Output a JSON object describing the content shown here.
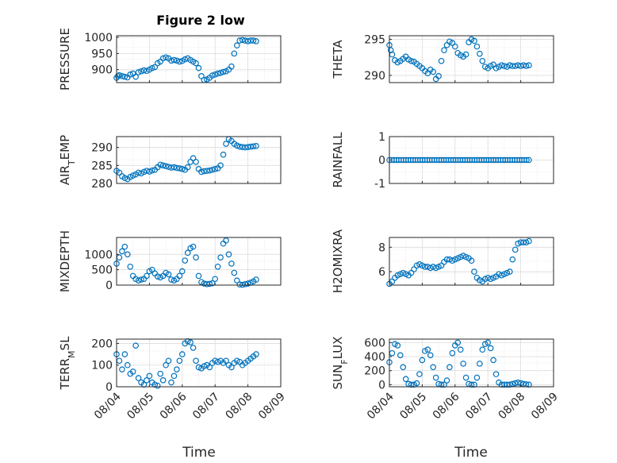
{
  "figure": {
    "title": "Figure 2 low",
    "marker_color": "#0072BD",
    "x_ticks": [
      "08/04",
      "08/05",
      "08/06",
      "08/07",
      "08/08",
      "08/09"
    ],
    "x_label": "Time"
  },
  "chart_data": [
    {
      "type": "scatter",
      "ylabel": "PRESSURE",
      "ylim": [
        860,
        1005
      ],
      "yticks": [
        "900",
        "950",
        "1000"
      ],
      "grid": true,
      "x": [
        "08/04 00:00",
        "08/04 01:00",
        "08/04 02:00",
        "08/04 04:00",
        "08/04 06:00",
        "08/04 08:00",
        "08/04 10:00",
        "08/04 12:00",
        "08/04 14:00",
        "08/04 16:00",
        "08/04 18:00",
        "08/04 20:00",
        "08/04 22:00",
        "08/05 00:00",
        "08/05 02:00",
        "08/05 04:00",
        "08/05 06:00",
        "08/05 08:00",
        "08/05 10:00",
        "08/05 12:00",
        "08/05 14:00",
        "08/05 16:00",
        "08/05 18:00",
        "08/05 20:00",
        "08/05 22:00",
        "08/06 00:00",
        "08/06 02:00",
        "08/06 04:00",
        "08/06 06:00",
        "08/06 08:00",
        "08/06 10:00",
        "08/06 12:00",
        "08/06 14:00",
        "08/06 16:00",
        "08/06 18:00",
        "08/06 20:00",
        "08/06 22:00",
        "08/07 00:00",
        "08/07 02:00",
        "08/07 04:00",
        "08/07 06:00",
        "08/07 08:00",
        "08/07 10:00",
        "08/07 12:00",
        "08/07 14:00",
        "08/07 16:00",
        "08/07 18:00",
        "08/07 20:00",
        "08/07 22:00",
        "08/08 00:00",
        "08/08 02:00",
        "08/08 04:00",
        "08/08 06:00"
      ],
      "y": [
        875,
        880,
        883,
        880,
        878,
        876,
        885,
        888,
        878,
        892,
        895,
        898,
        896,
        900,
        905,
        908,
        920,
        925,
        935,
        938,
        935,
        928,
        930,
        928,
        925,
        927,
        932,
        935,
        930,
        925,
        920,
        905,
        880,
        868,
        870,
        875,
        882,
        885,
        888,
        890,
        893,
        895,
        900,
        910,
        950,
        975,
        990,
        992,
        990,
        988,
        990,
        990,
        988
      ]
    },
    {
      "type": "scatter",
      "ylabel": "THETA",
      "ylim": [
        289,
        295.5
      ],
      "yticks": [
        "290",
        "295"
      ],
      "grid": true,
      "x": [
        "08/04 00:00",
        "08/04 01:00",
        "08/04 02:00",
        "08/04 04:00",
        "08/04 06:00",
        "08/04 08:00",
        "08/04 10:00",
        "08/04 12:00",
        "08/04 14:00",
        "08/04 16:00",
        "08/04 18:00",
        "08/04 20:00",
        "08/04 22:00",
        "08/05 00:00",
        "08/05 02:00",
        "08/05 04:00",
        "08/05 06:00",
        "08/05 08:00",
        "08/05 10:00",
        "08/05 12:00",
        "08/05 14:00",
        "08/05 16:00",
        "08/05 18:00",
        "08/05 20:00",
        "08/05 22:00",
        "08/06 00:00",
        "08/06 02:00",
        "08/06 04:00",
        "08/06 06:00",
        "08/06 08:00",
        "08/06 10:00",
        "08/06 12:00",
        "08/06 14:00",
        "08/06 16:00",
        "08/06 18:00",
        "08/06 20:00",
        "08/06 22:00",
        "08/07 00:00",
        "08/07 02:00",
        "08/07 04:00",
        "08/07 06:00",
        "08/07 08:00",
        "08/07 10:00",
        "08/07 12:00",
        "08/07 14:00",
        "08/07 16:00",
        "08/07 18:00",
        "08/07 20:00",
        "08/07 22:00",
        "08/08 00:00",
        "08/08 02:00",
        "08/08 04:00",
        "08/08 06:00"
      ],
      "y": [
        294.2,
        293.5,
        292.9,
        292.1,
        291.8,
        292.0,
        292.3,
        292.6,
        292.2,
        292.0,
        291.9,
        291.6,
        291.3,
        291.0,
        290.6,
        290.3,
        290.8,
        290.5,
        289.5,
        289.9,
        292.0,
        293.5,
        294.2,
        294.7,
        294.5,
        294.0,
        293.1,
        292.8,
        292.6,
        292.9,
        294.6,
        295.0,
        294.8,
        294.0,
        293.0,
        292.0,
        291.2,
        291.0,
        291.3,
        291.5,
        291.0,
        291.2,
        291.4,
        291.3,
        291.2,
        291.4,
        291.3,
        291.3,
        291.4,
        291.3,
        291.4,
        291.3,
        291.4
      ]
    },
    {
      "type": "scatter",
      "ylabel": "AIR_TEMP",
      "ylim": [
        280,
        293
      ],
      "yticks": [
        "280",
        "285",
        "290"
      ],
      "grid": true,
      "x": [
        "08/04 00:00",
        "08/04 02:00",
        "08/04 04:00",
        "08/04 06:00",
        "08/04 08:00",
        "08/04 10:00",
        "08/04 12:00",
        "08/04 14:00",
        "08/04 16:00",
        "08/04 18:00",
        "08/04 20:00",
        "08/04 22:00",
        "08/05 00:00",
        "08/05 02:00",
        "08/05 04:00",
        "08/05 06:00",
        "08/05 08:00",
        "08/05 10:00",
        "08/05 12:00",
        "08/05 14:00",
        "08/05 16:00",
        "08/05 18:00",
        "08/05 20:00",
        "08/05 22:00",
        "08/06 00:00",
        "08/06 02:00",
        "08/06 04:00",
        "08/06 06:00",
        "08/06 08:00",
        "08/06 10:00",
        "08/06 12:00",
        "08/06 14:00",
        "08/06 16:00",
        "08/06 18:00",
        "08/06 20:00",
        "08/06 22:00",
        "08/07 00:00",
        "08/07 02:00",
        "08/07 04:00",
        "08/07 06:00",
        "08/07 08:00",
        "08/07 10:00",
        "08/07 12:00",
        "08/07 14:00",
        "08/07 16:00",
        "08/07 18:00",
        "08/07 20:00",
        "08/07 22:00",
        "08/08 00:00",
        "08/08 02:00",
        "08/08 04:00",
        "08/08 06:00"
      ],
      "y": [
        283.5,
        283,
        282,
        281.5,
        281.2,
        281.8,
        282.2,
        282.5,
        283,
        282.8,
        283.2,
        283.5,
        283.3,
        283.6,
        283.8,
        284.5,
        285.2,
        285,
        284.8,
        284.6,
        284.4,
        284.5,
        284.3,
        284.2,
        284.0,
        283.8,
        284.5,
        286,
        287,
        286,
        284,
        283.2,
        283.4,
        283.5,
        283.6,
        283.8,
        284.0,
        284.2,
        285,
        288,
        291,
        292.3,
        291.8,
        291,
        290.5,
        290.2,
        290.1,
        290.0,
        290.1,
        290.2,
        290.3,
        290.4
      ]
    },
    {
      "type": "scatter",
      "ylabel": "RAINFALL",
      "ylim": [
        -1,
        1
      ],
      "yticks": [
        "-1",
        "0",
        "1"
      ],
      "grid": true,
      "x_range": [
        "08/04 00:00",
        "08/08 06:00"
      ],
      "y_constant": 0,
      "n_points": 60
    },
    {
      "type": "scatter",
      "ylabel": "MIXDEPTH",
      "ylim": [
        0,
        1550
      ],
      "yticks": [
        "0",
        "500",
        "1000"
      ],
      "grid": true,
      "x": [
        "08/04 00:00",
        "08/04 02:00",
        "08/04 04:00",
        "08/04 06:00",
        "08/04 08:00",
        "08/04 10:00",
        "08/04 12:00",
        "08/04 14:00",
        "08/04 16:00",
        "08/04 18:00",
        "08/04 20:00",
        "08/04 22:00",
        "08/05 00:00",
        "08/05 02:00",
        "08/05 04:00",
        "08/05 06:00",
        "08/05 08:00",
        "08/05 10:00",
        "08/05 12:00",
        "08/05 14:00",
        "08/05 16:00",
        "08/05 18:00",
        "08/05 20:00",
        "08/05 22:00",
        "08/06 00:00",
        "08/06 02:00",
        "08/06 04:00",
        "08/06 06:00",
        "08/06 08:00",
        "08/06 10:00",
        "08/06 12:00",
        "08/06 14:00",
        "08/06 16:00",
        "08/06 18:00",
        "08/06 20:00",
        "08/06 22:00",
        "08/07 00:00",
        "08/07 02:00",
        "08/07 04:00",
        "08/07 06:00",
        "08/07 08:00",
        "08/07 10:00",
        "08/07 12:00",
        "08/07 14:00",
        "08/07 16:00",
        "08/07 18:00",
        "08/07 20:00",
        "08/07 22:00",
        "08/08 00:00",
        "08/08 02:00",
        "08/08 04:00",
        "08/08 06:00"
      ],
      "y": [
        700,
        900,
        1100,
        1250,
        1000,
        600,
        300,
        200,
        150,
        180,
        200,
        300,
        450,
        500,
        380,
        280,
        250,
        300,
        400,
        350,
        180,
        150,
        200,
        300,
        450,
        800,
        1050,
        1200,
        1250,
        900,
        300,
        100,
        50,
        30,
        40,
        60,
        200,
        600,
        900,
        1350,
        1450,
        1000,
        700,
        400,
        150,
        20,
        10,
        30,
        50,
        80,
        120,
        180
      ]
    },
    {
      "type": "scatter",
      "ylabel": "H2OMIXRA",
      "ylim": [
        4.9,
        8.8
      ],
      "yticks": [
        "6",
        "8"
      ],
      "grid": true,
      "x": [
        "08/04 00:00",
        "08/04 02:00",
        "08/04 04:00",
        "08/04 06:00",
        "08/04 08:00",
        "08/04 10:00",
        "08/04 12:00",
        "08/04 14:00",
        "08/04 16:00",
        "08/04 18:00",
        "08/04 20:00",
        "08/04 22:00",
        "08/05 00:00",
        "08/05 02:00",
        "08/05 04:00",
        "08/05 06:00",
        "08/05 08:00",
        "08/05 10:00",
        "08/05 12:00",
        "08/05 14:00",
        "08/05 16:00",
        "08/05 18:00",
        "08/05 20:00",
        "08/05 22:00",
        "08/06 00:00",
        "08/06 02:00",
        "08/06 04:00",
        "08/06 06:00",
        "08/06 08:00",
        "08/06 10:00",
        "08/06 12:00",
        "08/06 14:00",
        "08/06 16:00",
        "08/06 18:00",
        "08/06 20:00",
        "08/06 22:00",
        "08/07 00:00",
        "08/07 02:00",
        "08/07 04:00",
        "08/07 06:00",
        "08/07 08:00",
        "08/07 10:00",
        "08/07 12:00",
        "08/07 14:00",
        "08/07 16:00",
        "08/07 18:00",
        "08/07 20:00",
        "08/07 22:00",
        "08/08 00:00",
        "08/08 02:00",
        "08/08 04:00",
        "08/08 06:00"
      ],
      "y": [
        5.0,
        5.2,
        5.5,
        5.7,
        5.8,
        5.9,
        5.8,
        5.7,
        5.9,
        6.2,
        6.5,
        6.6,
        6.5,
        6.4,
        6.4,
        6.3,
        6.4,
        6.3,
        6.4,
        6.5,
        6.8,
        7.0,
        7.0,
        6.9,
        7.0,
        7.1,
        7.2,
        7.3,
        7.2,
        7.1,
        6.9,
        6.0,
        5.5,
        5.3,
        5.2,
        5.4,
        5.5,
        5.4,
        5.5,
        5.6,
        5.8,
        5.7,
        5.8,
        5.9,
        6.0,
        7.0,
        7.8,
        8.3,
        8.4,
        8.4,
        8.4,
        8.5
      ]
    },
    {
      "type": "scatter",
      "ylabel": "TERR_MSL",
      "ylim": [
        0,
        220
      ],
      "yticks": [
        "0",
        "100",
        "200"
      ],
      "grid": true,
      "x": [
        "08/04 00:00",
        "08/04 02:00",
        "08/04 04:00",
        "08/04 06:00",
        "08/04 08:00",
        "08/04 10:00",
        "08/04 12:00",
        "08/04 14:00",
        "08/04 16:00",
        "08/04 18:00",
        "08/04 20:00",
        "08/04 22:00",
        "08/05 00:00",
        "08/05 02:00",
        "08/05 04:00",
        "08/05 06:00",
        "08/05 08:00",
        "08/05 10:00",
        "08/05 12:00",
        "08/05 14:00",
        "08/05 16:00",
        "08/05 18:00",
        "08/05 20:00",
        "08/05 22:00",
        "08/06 00:00",
        "08/06 02:00",
        "08/06 04:00",
        "08/06 06:00",
        "08/06 08:00",
        "08/06 10:00",
        "08/06 12:00",
        "08/06 14:00",
        "08/06 16:00",
        "08/06 18:00",
        "08/06 20:00",
        "08/06 22:00",
        "08/07 00:00",
        "08/07 02:00",
        "08/07 04:00",
        "08/07 06:00",
        "08/07 08:00",
        "08/07 10:00",
        "08/07 12:00",
        "08/07 14:00",
        "08/07 16:00",
        "08/07 18:00",
        "08/07 20:00",
        "08/07 22:00",
        "08/08 00:00",
        "08/08 02:00",
        "08/08 04:00",
        "08/08 06:00"
      ],
      "y": [
        150,
        120,
        80,
        150,
        100,
        60,
        70,
        190,
        40,
        20,
        10,
        30,
        50,
        20,
        10,
        5,
        60,
        30,
        100,
        120,
        20,
        50,
        80,
        120,
        150,
        200,
        210,
        205,
        180,
        120,
        90,
        85,
        95,
        100,
        90,
        110,
        120,
        115,
        120,
        110,
        120,
        100,
        90,
        110,
        120,
        115,
        100,
        110,
        120,
        130,
        140,
        150
      ]
    },
    {
      "type": "scatter",
      "ylabel": "SUN_FLUX",
      "ylim": [
        -30,
        650
      ],
      "yticks": [
        "0",
        "200",
        "400",
        "600"
      ],
      "grid": true,
      "x": [
        "08/04 00:00",
        "08/04 02:00",
        "08/04 04:00",
        "08/04 06:00",
        "08/04 08:00",
        "08/04 10:00",
        "08/04 12:00",
        "08/04 14:00",
        "08/04 16:00",
        "08/04 18:00",
        "08/04 20:00",
        "08/04 22:00",
        "08/05 00:00",
        "08/05 02:00",
        "08/05 04:00",
        "08/05 06:00",
        "08/05 08:00",
        "08/05 10:00",
        "08/05 12:00",
        "08/05 14:00",
        "08/05 16:00",
        "08/05 18:00",
        "08/05 20:00",
        "08/05 22:00",
        "08/06 00:00",
        "08/06 02:00",
        "08/06 04:00",
        "08/06 06:00",
        "08/06 08:00",
        "08/06 10:00",
        "08/06 12:00",
        "08/06 14:00",
        "08/06 16:00",
        "08/06 18:00",
        "08/06 20:00",
        "08/06 22:00",
        "08/07 00:00",
        "08/07 02:00",
        "08/07 04:00",
        "08/07 06:00",
        "08/07 08:00",
        "08/07 10:00",
        "08/07 12:00",
        "08/07 14:00",
        "08/07 16:00",
        "08/07 18:00",
        "08/07 20:00",
        "08/07 22:00",
        "08/08 00:00",
        "08/08 02:00",
        "08/08 04:00",
        "08/08 06:00"
      ],
      "y": [
        320,
        450,
        580,
        560,
        420,
        250,
        80,
        10,
        0,
        0,
        20,
        150,
        350,
        480,
        500,
        420,
        250,
        100,
        10,
        0,
        0,
        60,
        250,
        450,
        560,
        600,
        500,
        300,
        100,
        10,
        0,
        0,
        100,
        300,
        500,
        580,
        600,
        520,
        350,
        150,
        30,
        0,
        0,
        0,
        0,
        10,
        20,
        30,
        20,
        10,
        5,
        0
      ]
    }
  ]
}
